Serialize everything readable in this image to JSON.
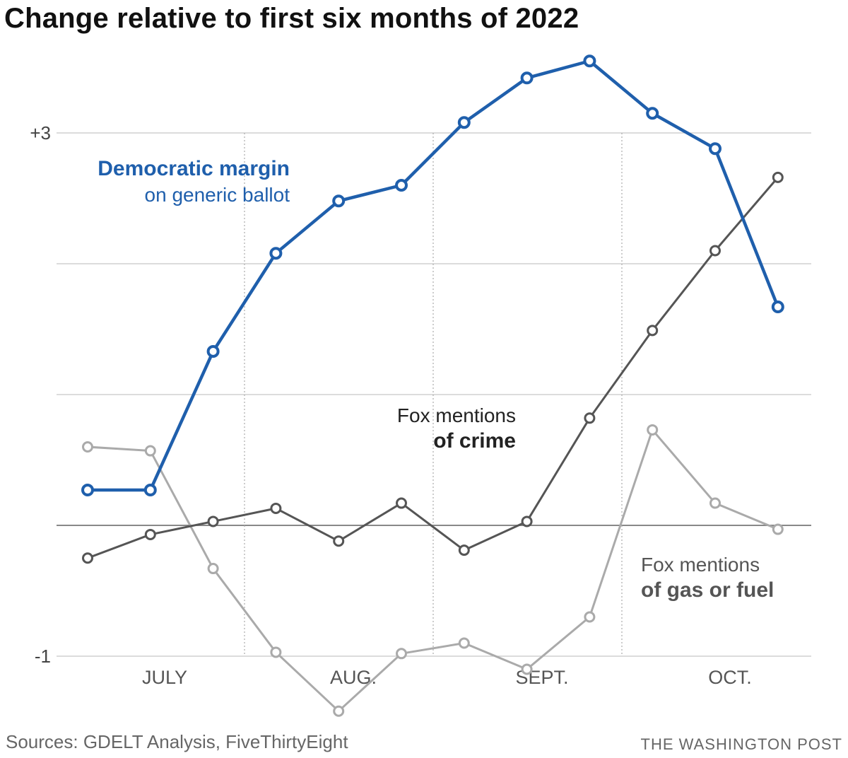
{
  "chart_data": {
    "type": "line",
    "title": "Change relative to first six months of 2022",
    "ylim": [
      -1,
      3.85
    ],
    "yticks": [
      {
        "value": 3,
        "label": "+3"
      },
      {
        "value": 2,
        "label": ""
      },
      {
        "value": 1,
        "label": ""
      },
      {
        "value": 0,
        "label": ""
      },
      {
        "value": -1,
        "label": "-1"
      }
    ],
    "month_labels": [
      "JULY",
      "AUG.",
      "SEPT.",
      "OCT."
    ],
    "x_count": 12,
    "series": [
      {
        "name": "Democratic margin on generic ballot",
        "color": "#1f5fac",
        "values": [
          0.27,
          0.27,
          1.33,
          2.08,
          2.48,
          2.6,
          3.08,
          3.42,
          3.55,
          3.15,
          2.88,
          1.67
        ]
      },
      {
        "name": "Fox mentions of crime",
        "color": "#555555",
        "values": [
          -0.25,
          -0.07,
          0.03,
          0.13,
          -0.12,
          0.17,
          -0.19,
          0.03,
          0.82,
          1.49,
          2.1,
          2.66
        ]
      },
      {
        "name": "Fox mentions of gas or fuel",
        "color": "#aaaaaa",
        "values": [
          0.6,
          0.57,
          -0.33,
          -0.97,
          -1.42,
          -0.98,
          -0.9,
          -1.1,
          -0.7,
          0.73,
          0.17,
          -0.03
        ]
      }
    ],
    "annotations": {
      "dem_line1": "Democratic margin",
      "dem_line2": "on generic ballot",
      "crime_line1": "Fox mentions",
      "crime_line2": "of crime",
      "gas_line1": "Fox mentions",
      "gas_line2": "of gas or fuel"
    }
  },
  "footer": {
    "sources": "Sources: GDELT Analysis, FiveThirtyEight",
    "credit": "THE WASHINGTON POST"
  }
}
